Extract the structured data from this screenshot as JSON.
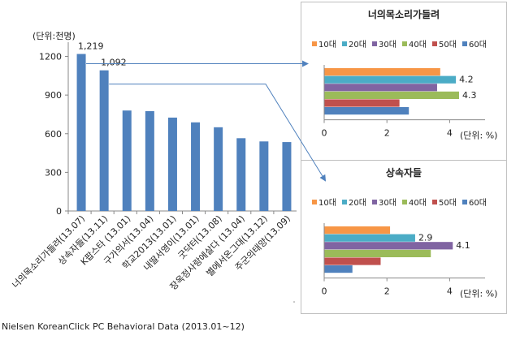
{
  "source_note": "Nielsen KoreanClick PC Behavioral Data (2013.01~12)",
  "colors": {
    "main_bar": "#4f81bd",
    "series": [
      "#f79646",
      "#4bacc6",
      "#8064a2",
      "#9bbb59",
      "#c0504d",
      "#4f81bd"
    ],
    "connector": "#4f81bd"
  },
  "chart_data": [
    {
      "type": "bar",
      "unit_label": "(단위:천명)",
      "categories": [
        "너의목소리가들려(13.07)",
        "상속자들(13.11)",
        "K팝스타 (13.01)",
        "구가의서(13.04)",
        "학교2013(13.01)",
        "내딸서영이(13.01)",
        "굿닥터(13.08)",
        "장옥정사랑에살다 (13.04)",
        "별에서온그대(13.12)",
        "주군의태양(13.09)"
      ],
      "values": [
        1219,
        1092,
        780,
        775,
        725,
        688,
        650,
        565,
        540,
        535
      ],
      "data_labels": [
        "1,219",
        "1,092",
        "",
        "",
        "",
        "",
        "",
        "",
        "",
        ""
      ],
      "yticks": [
        "0",
        "300",
        "600",
        "900",
        "1200"
      ],
      "ylim": [
        0,
        1260
      ],
      "grid": false
    },
    {
      "type": "bar",
      "orientation": "horizontal",
      "title": "너의목소리가들려",
      "series": [
        {
          "name": "10대",
          "value": 3.7,
          "label": ""
        },
        {
          "name": "20대",
          "value": 4.2,
          "label": "4.2"
        },
        {
          "name": "30대",
          "value": 3.6,
          "label": ""
        },
        {
          "name": "40대",
          "value": 4.3,
          "label": "4.3"
        },
        {
          "name": "50대",
          "value": 2.4,
          "label": ""
        },
        {
          "name": "60대",
          "value": 2.7,
          "label": ""
        }
      ],
      "xticks": [
        "0",
        "2",
        "4"
      ],
      "xlim": [
        0,
        5
      ],
      "unit_label": "(단위: %)",
      "legend": "top"
    },
    {
      "type": "bar",
      "orientation": "horizontal",
      "title": "상속자들",
      "series": [
        {
          "name": "10대",
          "value": 2.1,
          "label": ""
        },
        {
          "name": "20대",
          "value": 2.9,
          "label": "2.9"
        },
        {
          "name": "30대",
          "value": 4.1,
          "label": "4.1"
        },
        {
          "name": "40대",
          "value": 3.4,
          "label": ""
        },
        {
          "name": "50대",
          "value": 1.8,
          "label": ""
        },
        {
          "name": "60대",
          "value": 0.9,
          "label": ""
        }
      ],
      "xticks": [
        "0",
        "2",
        "4"
      ],
      "xlim": [
        0,
        5
      ],
      "unit_label": "(단위: %)",
      "legend": "top"
    }
  ]
}
